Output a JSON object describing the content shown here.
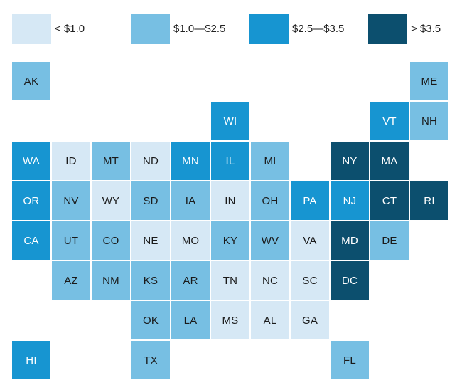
{
  "colors": {
    "lt1": "#d6e8f5",
    "1to2_5": "#77bfe3",
    "2_5to3_5": "#1795d1",
    "gt3_5": "#0c4f6e"
  },
  "legend": [
    {
      "key": "lt1",
      "label": "< $1.0"
    },
    {
      "key": "1to2_5",
      "label": "$1.0—$2.5"
    },
    {
      "key": "2_5to3_5",
      "label": "$2.5—$3.5"
    },
    {
      "key": "gt3_5",
      "label": "> $3.5"
    }
  ],
  "states": [
    {
      "abbr": "AK",
      "col": 0,
      "row": 0,
      "bin": "1to2_5"
    },
    {
      "abbr": "ME",
      "col": 10,
      "row": 0,
      "bin": "1to2_5"
    },
    {
      "abbr": "WI",
      "col": 5,
      "row": 1,
      "bin": "2_5to3_5"
    },
    {
      "abbr": "VT",
      "col": 9,
      "row": 1,
      "bin": "2_5to3_5"
    },
    {
      "abbr": "NH",
      "col": 10,
      "row": 1,
      "bin": "1to2_5"
    },
    {
      "abbr": "WA",
      "col": 0,
      "row": 2,
      "bin": "2_5to3_5"
    },
    {
      "abbr": "ID",
      "col": 1,
      "row": 2,
      "bin": "lt1"
    },
    {
      "abbr": "MT",
      "col": 2,
      "row": 2,
      "bin": "1to2_5"
    },
    {
      "abbr": "ND",
      "col": 3,
      "row": 2,
      "bin": "lt1"
    },
    {
      "abbr": "MN",
      "col": 4,
      "row": 2,
      "bin": "2_5to3_5"
    },
    {
      "abbr": "IL",
      "col": 5,
      "row": 2,
      "bin": "2_5to3_5"
    },
    {
      "abbr": "MI",
      "col": 6,
      "row": 2,
      "bin": "1to2_5"
    },
    {
      "abbr": "NY",
      "col": 8,
      "row": 2,
      "bin": "gt3_5"
    },
    {
      "abbr": "MA",
      "col": 9,
      "row": 2,
      "bin": "gt3_5"
    },
    {
      "abbr": "OR",
      "col": 0,
      "row": 3,
      "bin": "2_5to3_5"
    },
    {
      "abbr": "NV",
      "col": 1,
      "row": 3,
      "bin": "1to2_5"
    },
    {
      "abbr": "WY",
      "col": 2,
      "row": 3,
      "bin": "lt1"
    },
    {
      "abbr": "SD",
      "col": 3,
      "row": 3,
      "bin": "1to2_5"
    },
    {
      "abbr": "IA",
      "col": 4,
      "row": 3,
      "bin": "1to2_5"
    },
    {
      "abbr": "IN",
      "col": 5,
      "row": 3,
      "bin": "lt1"
    },
    {
      "abbr": "OH",
      "col": 6,
      "row": 3,
      "bin": "1to2_5"
    },
    {
      "abbr": "PA",
      "col": 7,
      "row": 3,
      "bin": "2_5to3_5"
    },
    {
      "abbr": "NJ",
      "col": 8,
      "row": 3,
      "bin": "2_5to3_5"
    },
    {
      "abbr": "CT",
      "col": 9,
      "row": 3,
      "bin": "gt3_5"
    },
    {
      "abbr": "RI",
      "col": 10,
      "row": 3,
      "bin": "gt3_5"
    },
    {
      "abbr": "CA",
      "col": 0,
      "row": 4,
      "bin": "2_5to3_5"
    },
    {
      "abbr": "UT",
      "col": 1,
      "row": 4,
      "bin": "1to2_5"
    },
    {
      "abbr": "CO",
      "col": 2,
      "row": 4,
      "bin": "1to2_5"
    },
    {
      "abbr": "NE",
      "col": 3,
      "row": 4,
      "bin": "lt1"
    },
    {
      "abbr": "MO",
      "col": 4,
      "row": 4,
      "bin": "lt1"
    },
    {
      "abbr": "KY",
      "col": 5,
      "row": 4,
      "bin": "1to2_5"
    },
    {
      "abbr": "WV",
      "col": 6,
      "row": 4,
      "bin": "1to2_5"
    },
    {
      "abbr": "VA",
      "col": 7,
      "row": 4,
      "bin": "lt1"
    },
    {
      "abbr": "MD",
      "col": 8,
      "row": 4,
      "bin": "gt3_5"
    },
    {
      "abbr": "DE",
      "col": 9,
      "row": 4,
      "bin": "1to2_5"
    },
    {
      "abbr": "AZ",
      "col": 1,
      "row": 5,
      "bin": "1to2_5"
    },
    {
      "abbr": "NM",
      "col": 2,
      "row": 5,
      "bin": "1to2_5"
    },
    {
      "abbr": "KS",
      "col": 3,
      "row": 5,
      "bin": "1to2_5"
    },
    {
      "abbr": "AR",
      "col": 4,
      "row": 5,
      "bin": "1to2_5"
    },
    {
      "abbr": "TN",
      "col": 5,
      "row": 5,
      "bin": "lt1"
    },
    {
      "abbr": "NC",
      "col": 6,
      "row": 5,
      "bin": "lt1"
    },
    {
      "abbr": "SC",
      "col": 7,
      "row": 5,
      "bin": "lt1"
    },
    {
      "abbr": "DC",
      "col": 8,
      "row": 5,
      "bin": "gt3_5"
    },
    {
      "abbr": "OK",
      "col": 3,
      "row": 6,
      "bin": "1to2_5"
    },
    {
      "abbr": "LA",
      "col": 4,
      "row": 6,
      "bin": "1to2_5"
    },
    {
      "abbr": "MS",
      "col": 5,
      "row": 6,
      "bin": "lt1"
    },
    {
      "abbr": "AL",
      "col": 6,
      "row": 6,
      "bin": "lt1"
    },
    {
      "abbr": "GA",
      "col": 7,
      "row": 6,
      "bin": "lt1"
    },
    {
      "abbr": "HI",
      "col": 0,
      "row": 7,
      "bin": "2_5to3_5"
    },
    {
      "abbr": "TX",
      "col": 3,
      "row": 7,
      "bin": "1to2_5"
    },
    {
      "abbr": "FL",
      "col": 8,
      "row": 7,
      "bin": "1to2_5"
    }
  ]
}
